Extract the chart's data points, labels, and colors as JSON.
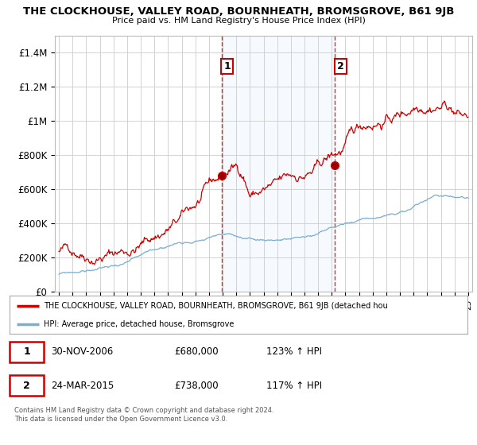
{
  "title": "THE CLOCKHOUSE, VALLEY ROAD, BOURNHEATH, BROMSGROVE, B61 9JB",
  "subtitle": "Price paid vs. HM Land Registry's House Price Index (HPI)",
  "ylim": [
    0,
    1500000
  ],
  "yticks": [
    0,
    200000,
    400000,
    600000,
    800000,
    1000000,
    1200000,
    1400000
  ],
  "ytick_labels": [
    "£0",
    "£200K",
    "£400K",
    "£600K",
    "£800K",
    "£1M",
    "£1.2M",
    "£1.4M"
  ],
  "line_color_red": "#cc0000",
  "line_color_blue": "#7aadcf",
  "vline_color": "#cc0000",
  "shade_color": "#ddeeff",
  "sale1_x": 2006.917,
  "sale1_y": 680000,
  "sale1_label": "1",
  "sale2_x": 2015.23,
  "sale2_y": 738000,
  "sale2_label": "2",
  "legend_red_label": "THE CLOCKHOUSE, VALLEY ROAD, BOURNHEATH, BROMSGROVE, B61 9JB (detached hou",
  "legend_blue_label": "HPI: Average price, detached house, Bromsgrove",
  "table_row1": [
    "1",
    "30-NOV-2006",
    "£680,000",
    "123% ↑ HPI"
  ],
  "table_row2": [
    "2",
    "24-MAR-2015",
    "£738,000",
    "117% ↑ HPI"
  ],
  "footer": "Contains HM Land Registry data © Crown copyright and database right 2024.\nThis data is licensed under the Open Government Licence v3.0.",
  "background_color": "#ffffff",
  "grid_color": "#cccccc",
  "xlim_left": 1994.7,
  "xlim_right": 2025.3
}
